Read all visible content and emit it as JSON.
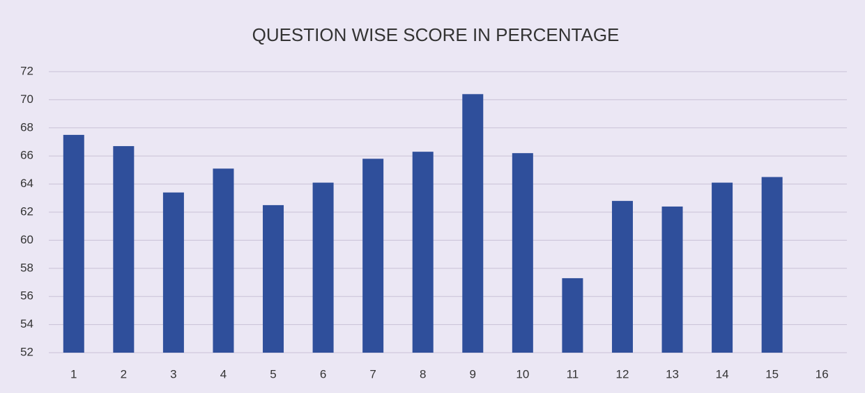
{
  "chart_data": {
    "type": "bar",
    "title": "QUESTION WISE SCORE IN PERCENTAGE",
    "categories": [
      "1",
      "2",
      "3",
      "4",
      "5",
      "6",
      "7",
      "8",
      "9",
      "10",
      "11",
      "12",
      "13",
      "14",
      "15",
      "16"
    ],
    "values": [
      67.5,
      66.7,
      63.4,
      65.1,
      62.5,
      64.1,
      65.8,
      66.3,
      70.4,
      66.2,
      57.3,
      62.8,
      62.4,
      64.1,
      64.5,
      null
    ],
    "color": "#2f4f9b",
    "ylim": [
      52,
      72
    ],
    "yticks": [
      52,
      54,
      56,
      58,
      60,
      62,
      64,
      66,
      68,
      70,
      72
    ],
    "grid": true
  }
}
